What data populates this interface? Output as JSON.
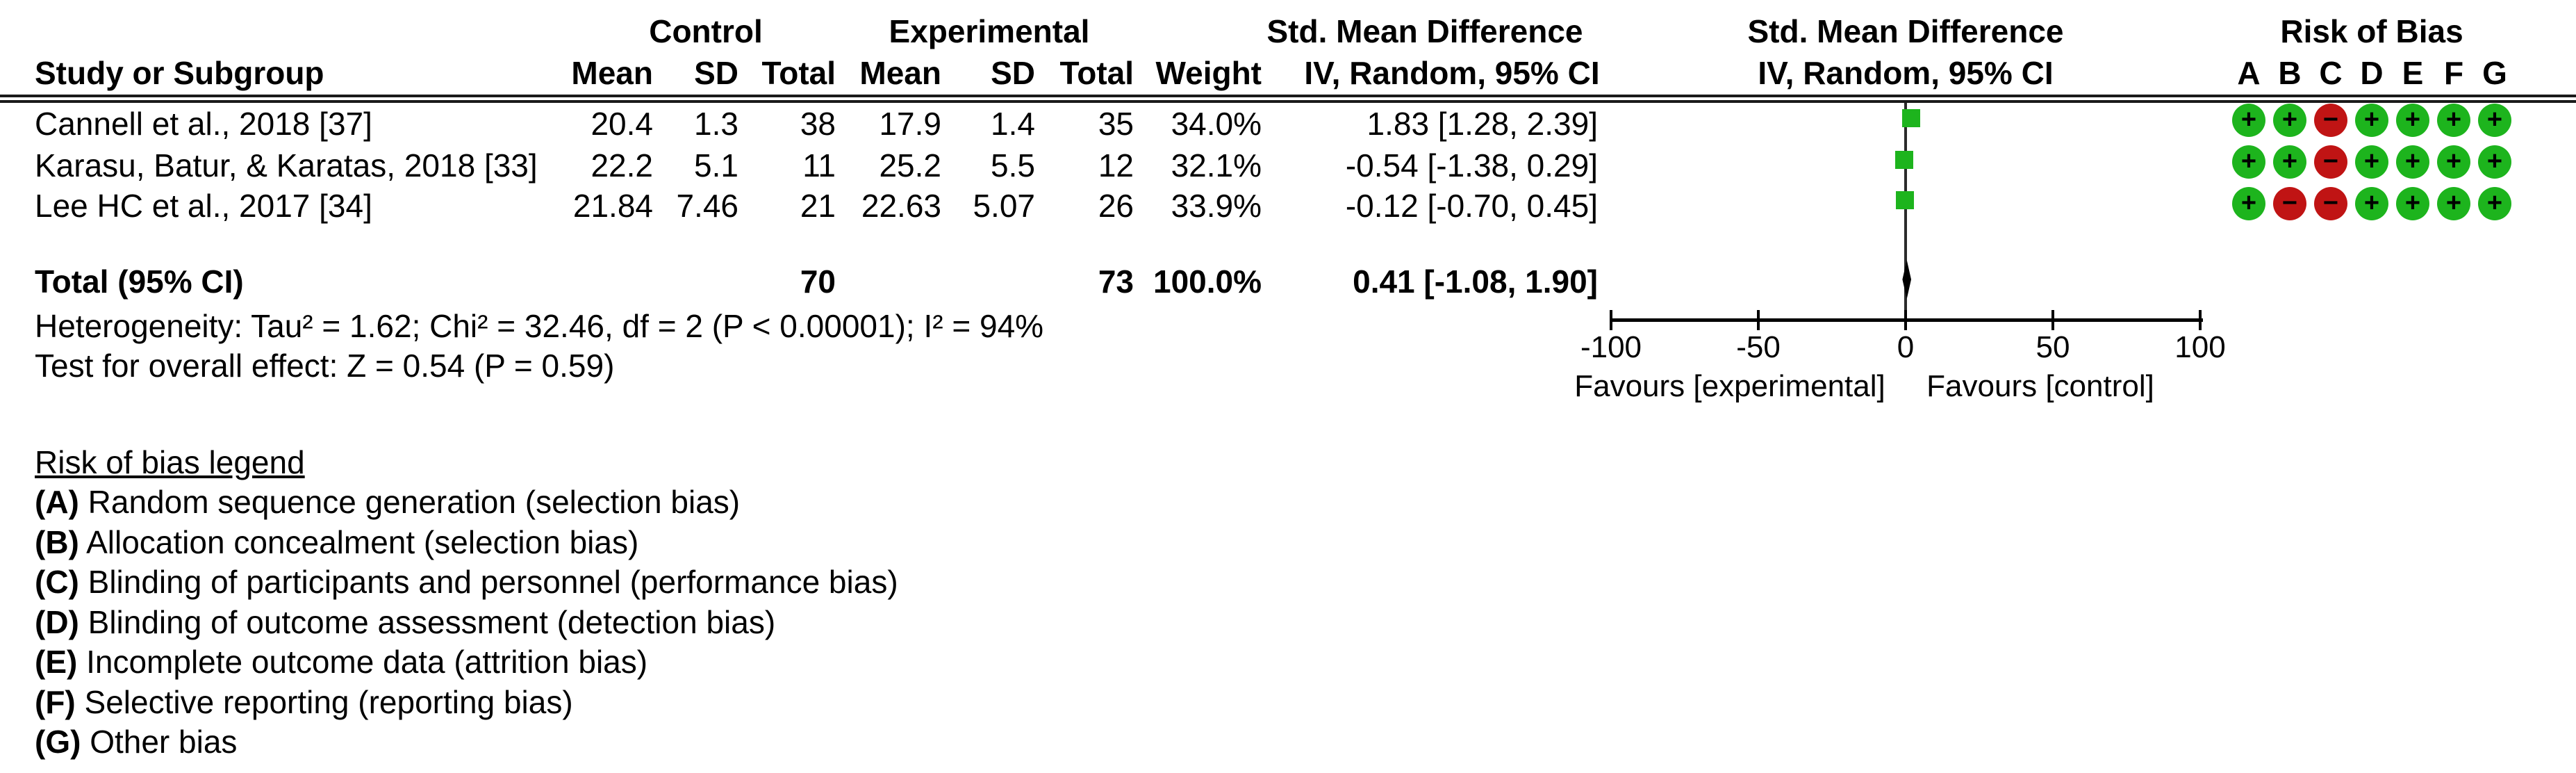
{
  "header": {
    "group_control": "Control",
    "group_experimental": "Experimental",
    "smd_text_line1": "Std. Mean Difference",
    "smd_text_line2": "IV, Random, 95% CI",
    "smd_plot_line1": "Std. Mean Difference",
    "smd_plot_line2": "IV, Random, 95% CI",
    "risk_of_bias": "Risk of Bias",
    "study": "Study or Subgroup",
    "c_mean": "Mean",
    "c_sd": "SD",
    "c_total": "Total",
    "e_mean": "Mean",
    "e_sd": "SD",
    "e_total": "Total",
    "weight": "Weight",
    "rob_letters": [
      "A",
      "B",
      "C",
      "D",
      "E",
      "F",
      "G"
    ]
  },
  "studies": [
    {
      "name": "Cannell et al., 2018 [37]",
      "control": {
        "mean": "20.4",
        "sd": "1.3",
        "total": "38"
      },
      "experimental": {
        "mean": "17.9",
        "sd": "1.4",
        "total": "35"
      },
      "weight": "34.0%",
      "ci_text": "1.83 [1.28, 2.39]",
      "smd": 1.83,
      "rob": [
        "+",
        "+",
        "-",
        "+",
        "+",
        "+",
        "+"
      ]
    },
    {
      "name": "Karasu, Batur, & Karatas, 2018 [33]",
      "control": {
        "mean": "22.2",
        "sd": "5.1",
        "total": "11"
      },
      "experimental": {
        "mean": "25.2",
        "sd": "5.5",
        "total": "12"
      },
      "weight": "32.1%",
      "ci_text": "-0.54 [-1.38, 0.29]",
      "smd": -0.54,
      "rob": [
        "+",
        "+",
        "-",
        "+",
        "+",
        "+",
        "+"
      ]
    },
    {
      "name": "Lee HC et al., 2017 [34]",
      "control": {
        "mean": "21.84",
        "sd": "7.46",
        "total": "21"
      },
      "experimental": {
        "mean": "22.63",
        "sd": "5.07",
        "total": "26"
      },
      "weight": "33.9%",
      "ci_text": "-0.12 [-0.70, 0.45]",
      "smd": -0.12,
      "rob": [
        "+",
        "-",
        "-",
        "+",
        "+",
        "+",
        "+"
      ]
    }
  ],
  "total_row": {
    "label": "Total (95% CI)",
    "control_total": "70",
    "experimental_total": "73",
    "weight": "100.0%",
    "ci_text": "0.41 [-1.08, 1.90]",
    "smd": 0.41,
    "ci_low": -1.08,
    "ci_high": 1.9
  },
  "stats": {
    "heterogeneity": "Heterogeneity: Tau² = 1.62; Chi² = 32.46, df = 2 (P < 0.00001); I² = 94%",
    "overall_effect": "Test for overall effect: Z = 0.54 (P = 0.59)"
  },
  "axis": {
    "tick_labels": [
      "-100",
      "-50",
      "0",
      "50",
      "100"
    ],
    "tick_values": [
      -100,
      -50,
      0,
      50,
      100
    ],
    "min": -100,
    "max": 100,
    "favours_left": "Favours [experimental]",
    "favours_right": "Favours [control]"
  },
  "legend": {
    "title": "Risk of bias legend",
    "items": [
      {
        "key": "(A)",
        "text": "Random sequence generation (selection bias)"
      },
      {
        "key": "(B)",
        "text": "Allocation concealment (selection bias)"
      },
      {
        "key": "(C)",
        "text": "Blinding of participants and personnel (performance bias)"
      },
      {
        "key": "(D)",
        "text": "Blinding of outcome assessment (detection bias)"
      },
      {
        "key": "(E)",
        "text": "Incomplete outcome data (attrition bias)"
      },
      {
        "key": "(F)",
        "text": "Selective reporting (reporting bias)"
      },
      {
        "key": "(G)",
        "text": "Other bias"
      }
    ]
  },
  "colors": {
    "rob_low_green": "#1db41d",
    "rob_high_red": "#c01414",
    "effect_square_green": "#1db41d",
    "line_black": "#000000"
  },
  "chart_data": {
    "type": "scatter",
    "subtype": "forest_plot",
    "effect_measure": "Std. Mean Difference",
    "method": "IV, Random, 95% CI",
    "xlim": [
      -100,
      100
    ],
    "x_ticks": [
      -100,
      -50,
      0,
      50,
      100
    ],
    "x_label_left": "Favours [experimental]",
    "x_label_right": "Favours [control]",
    "grid": false,
    "studies": [
      {
        "name": "Cannell et al., 2018 [37]",
        "control": {
          "mean": 20.4,
          "sd": 1.3,
          "total": 38
        },
        "experimental": {
          "mean": 17.9,
          "sd": 1.4,
          "total": 35
        },
        "weight_pct": 34.0,
        "smd": 1.83,
        "ci95": [
          1.28,
          2.39
        ],
        "risk_of_bias": [
          "low",
          "low",
          "high",
          "low",
          "low",
          "low",
          "low"
        ]
      },
      {
        "name": "Karasu, Batur, & Karatas, 2018 [33]",
        "control": {
          "mean": 22.2,
          "sd": 5.1,
          "total": 11
        },
        "experimental": {
          "mean": 25.2,
          "sd": 5.5,
          "total": 12
        },
        "weight_pct": 32.1,
        "smd": -0.54,
        "ci95": [
          -1.38,
          0.29
        ],
        "risk_of_bias": [
          "low",
          "low",
          "high",
          "low",
          "low",
          "low",
          "low"
        ]
      },
      {
        "name": "Lee HC et al., 2017 [34]",
        "control": {
          "mean": 21.84,
          "sd": 7.46,
          "total": 21
        },
        "experimental": {
          "mean": 22.63,
          "sd": 5.07,
          "total": 26
        },
        "weight_pct": 33.9,
        "smd": -0.12,
        "ci95": [
          -0.7,
          0.45
        ],
        "risk_of_bias": [
          "low",
          "high",
          "high",
          "low",
          "low",
          "low",
          "low"
        ]
      }
    ],
    "total": {
      "label": "Total (95% CI)",
      "control_total": 70,
      "experimental_total": 73,
      "weight_pct": 100.0,
      "smd": 0.41,
      "ci95": [
        -1.08,
        1.9
      ]
    },
    "heterogeneity": "Heterogeneity: Tau² = 1.62; Chi² = 32.46, df = 2 (P < 0.00001); I² = 94%",
    "overall_effect": "Test for overall effect: Z = 0.54 (P = 0.59)",
    "rob_domains": [
      "A",
      "B",
      "C",
      "D",
      "E",
      "F",
      "G"
    ],
    "rob_domain_descriptions": [
      "Random sequence generation (selection bias)",
      "Allocation concealment (selection bias)",
      "Blinding of participants and personnel (performance bias)",
      "Blinding of outcome assessment (detection bias)",
      "Incomplete outcome data (attrition bias)",
      "Selective reporting (reporting bias)",
      "Other bias"
    ]
  }
}
